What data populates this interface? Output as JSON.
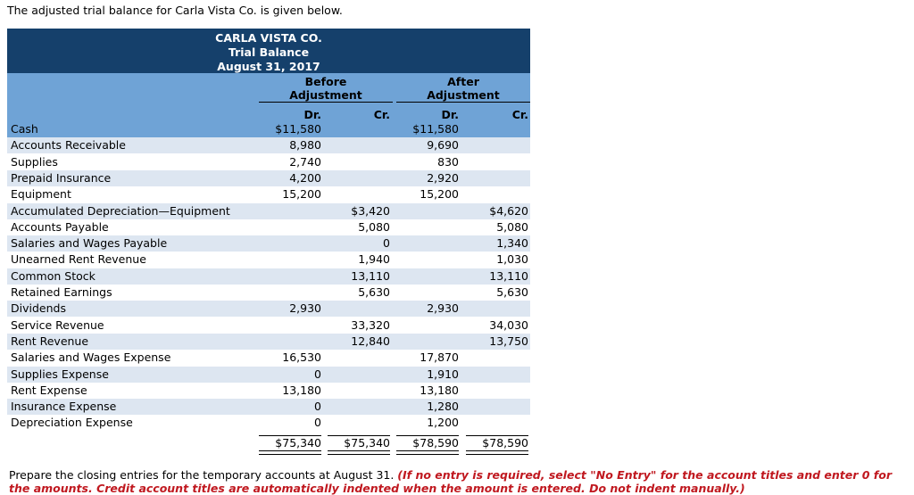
{
  "intro": "The adjusted trial balance for Carla Vista Co. is given below.",
  "header": {
    "company": "CARLA VISTA CO.",
    "report": "Trial Balance",
    "date": "August 31, 2017"
  },
  "columns": {
    "before_line1": "Before",
    "before_line2": "Adjustment",
    "after_line1": "After",
    "after_line2": "Adjustment",
    "dr": "Dr.",
    "cr": "Cr."
  },
  "rows": [
    {
      "account": "Cash",
      "before_dr": "$11,580",
      "before_cr": "",
      "after_dr": "$11,580",
      "after_cr": ""
    },
    {
      "account": "Accounts Receivable",
      "before_dr": "8,980",
      "before_cr": "",
      "after_dr": "9,690",
      "after_cr": ""
    },
    {
      "account": "Supplies",
      "before_dr": "2,740",
      "before_cr": "",
      "after_dr": "830",
      "after_cr": ""
    },
    {
      "account": "Prepaid Insurance",
      "before_dr": "4,200",
      "before_cr": "",
      "after_dr": "2,920",
      "after_cr": ""
    },
    {
      "account": "Equipment",
      "before_dr": "15,200",
      "before_cr": "",
      "after_dr": "15,200",
      "after_cr": ""
    },
    {
      "account": "Accumulated Depreciation—Equipment",
      "before_dr": "",
      "before_cr": "$3,420",
      "after_dr": "",
      "after_cr": "$4,620"
    },
    {
      "account": "Accounts Payable",
      "before_dr": "",
      "before_cr": "5,080",
      "after_dr": "",
      "after_cr": "5,080"
    },
    {
      "account": "Salaries and Wages Payable",
      "before_dr": "",
      "before_cr": "0",
      "after_dr": "",
      "after_cr": "1,340"
    },
    {
      "account": "Unearned Rent Revenue",
      "before_dr": "",
      "before_cr": "1,940",
      "after_dr": "",
      "after_cr": "1,030"
    },
    {
      "account": "Common Stock",
      "before_dr": "",
      "before_cr": "13,110",
      "after_dr": "",
      "after_cr": "13,110"
    },
    {
      "account": "Retained Earnings",
      "before_dr": "",
      "before_cr": "5,630",
      "after_dr": "",
      "after_cr": "5,630"
    },
    {
      "account": "Dividends",
      "before_dr": "2,930",
      "before_cr": "",
      "after_dr": "2,930",
      "after_cr": ""
    },
    {
      "account": "Service Revenue",
      "before_dr": "",
      "before_cr": "33,320",
      "after_dr": "",
      "after_cr": "34,030"
    },
    {
      "account": "Rent Revenue",
      "before_dr": "",
      "before_cr": "12,840",
      "after_dr": "",
      "after_cr": "13,750"
    },
    {
      "account": "Salaries and Wages Expense",
      "before_dr": "16,530",
      "before_cr": "",
      "after_dr": "17,870",
      "after_cr": ""
    },
    {
      "account": "Supplies Expense",
      "before_dr": "0",
      "before_cr": "",
      "after_dr": "1,910",
      "after_cr": ""
    },
    {
      "account": "Rent Expense",
      "before_dr": "13,180",
      "before_cr": "",
      "after_dr": "13,180",
      "after_cr": ""
    },
    {
      "account": "Insurance Expense",
      "before_dr": "0",
      "before_cr": "",
      "after_dr": "1,280",
      "after_cr": ""
    },
    {
      "account": "Depreciation Expense",
      "before_dr": "0",
      "before_cr": "",
      "after_dr": "1,200",
      "after_cr": ""
    }
  ],
  "totals": {
    "before_dr": "$75,340",
    "before_cr": "$75,340",
    "after_dr": "$78,590",
    "after_cr": "$78,590"
  },
  "instruction": {
    "plain": "Prepare the closing entries for the temporary accounts at August 31. ",
    "emphasis": "(If no entry is required, select \"No Entry\" for the account titles and enter 0 for the amounts. Credit account titles are automatically indented when the amount is entered. Do not indent manually.)"
  },
  "colors": {
    "header_dark": "#15406b",
    "header_light": "#6fa3d6",
    "stripe": "#dde6f1",
    "emphasis": "#c0181f"
  }
}
